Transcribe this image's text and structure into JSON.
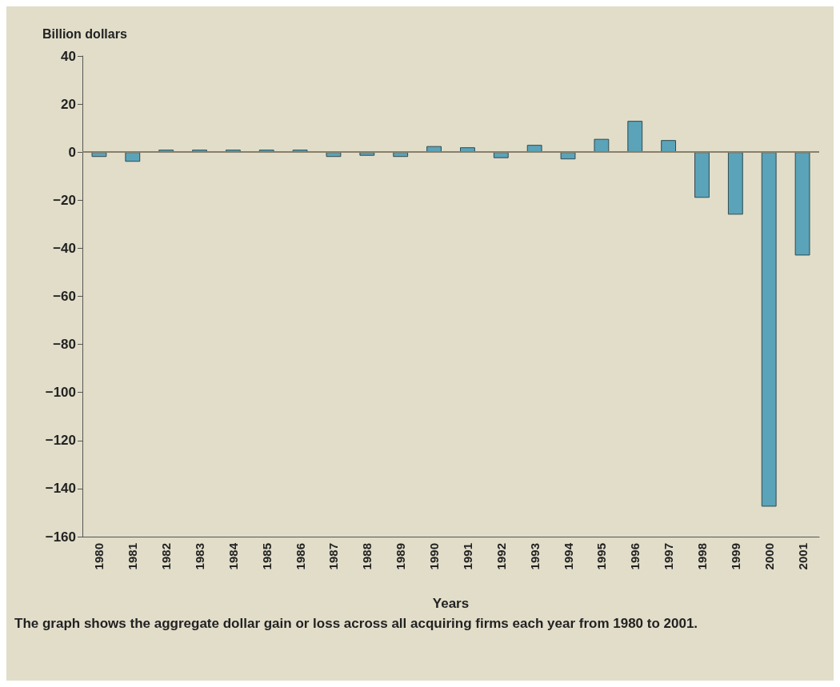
{
  "chart_data": {
    "type": "bar",
    "ylabel": "Billion dollars",
    "xlabel": "Years",
    "categories": [
      "1980",
      "1981",
      "1982",
      "1983",
      "1984",
      "1985",
      "1986",
      "1987",
      "1988",
      "1989",
      "1990",
      "1991",
      "1992",
      "1993",
      "1994",
      "1995",
      "1996",
      "1997",
      "1998",
      "1999",
      "2000",
      "2001"
    ],
    "values": [
      -2,
      -4,
      1,
      1,
      1,
      1,
      1,
      -2,
      -1.5,
      -2,
      2.5,
      2,
      -2.5,
      3,
      -3,
      5.5,
      13,
      5,
      -19,
      -26,
      -147.5,
      -43
    ],
    "color": "#5ba3b8",
    "ylim": [
      -160,
      40
    ],
    "yticks": [
      {
        "value": -160,
        "label": "−160"
      },
      {
        "value": -140,
        "label": "−140"
      },
      {
        "value": -120,
        "label": "−120"
      },
      {
        "value": -100,
        "label": "−100"
      },
      {
        "value": -80,
        "label": "−80"
      },
      {
        "value": -60,
        "label": "−60"
      },
      {
        "value": -40,
        "label": "−40"
      },
      {
        "value": -20,
        "label": "−20"
      },
      0,
      20,
      40
    ],
    "ref_lines": [
      {
        "axis": "y",
        "value": 0,
        "color": "#8a7f6a"
      }
    ],
    "annotations": [
      "The graph shows the aggregate dollar gain or loss across all acquiring firms each year from 1980 to 2001."
    ]
  }
}
